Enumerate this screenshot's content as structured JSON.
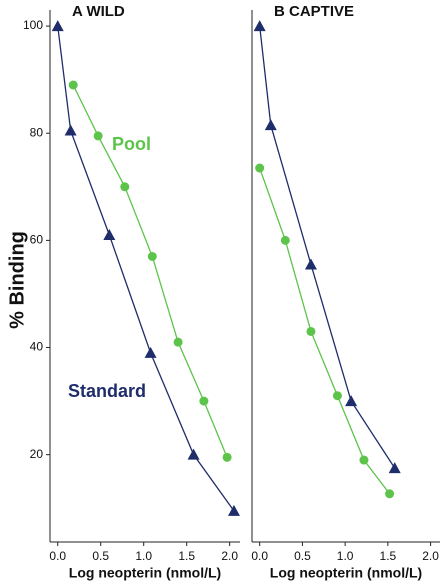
{
  "chart_data": [
    {
      "type": "line",
      "title": "A WILD",
      "y_label": "% Binding",
      "x_label": "Log neopterin (nmol/L)",
      "xlim": [
        -0.09,
        2.12
      ],
      "ylim": [
        3.7,
        103
      ],
      "xticks": [
        {
          "value": 0,
          "label": "0.0"
        },
        {
          "value": 0.5,
          "label": "0.5"
        },
        {
          "value": 1,
          "label": "1.0"
        },
        {
          "value": 1.5,
          "label": "1.5"
        },
        {
          "value": 2,
          "label": "2.0"
        }
      ],
      "yticks": [
        20,
        40,
        60,
        80,
        100
      ],
      "series": [
        {
          "name": "Standard",
          "color": "#1f2d6b",
          "marker": "triangle",
          "x": [
            0.0,
            0.15,
            0.6,
            1.08,
            1.58,
            2.05
          ],
          "values": [
            100,
            80.5,
            61,
            39,
            20,
            9.5
          ]
        },
        {
          "name": "Pool",
          "color": "#5cc44a",
          "marker": "circle",
          "x": [
            0.18,
            0.47,
            0.78,
            1.1,
            1.4,
            1.7,
            1.97
          ],
          "values": [
            89,
            79.5,
            70,
            57,
            41,
            30,
            19.5
          ]
        }
      ]
    },
    {
      "type": "line",
      "title": "B CAPTIVE",
      "x_label": "Log neopterin (nmol/L)",
      "xlim": [
        -0.09,
        2.11
      ],
      "ylim": [
        3.7,
        103
      ],
      "xticks": [
        {
          "value": 0,
          "label": "0.0"
        },
        {
          "value": 0.5,
          "label": "0.5"
        },
        {
          "value": 1,
          "label": "1.0"
        },
        {
          "value": 1.5,
          "label": "1.5"
        },
        {
          "value": 2,
          "label": "2.0"
        }
      ],
      "series": [
        {
          "color": "#1f2d6b",
          "marker": "triangle",
          "x": [
            0.0,
            0.13,
            0.6,
            1.07,
            1.58
          ],
          "values": [
            100,
            81.5,
            55.5,
            30,
            17.5
          ]
        },
        {
          "color": "#5cc44a",
          "marker": "circle",
          "x": [
            0.0,
            0.3,
            0.6,
            0.91,
            1.22,
            1.52
          ],
          "values": [
            73.5,
            60,
            43,
            31,
            19,
            12.7
          ]
        }
      ]
    }
  ]
}
